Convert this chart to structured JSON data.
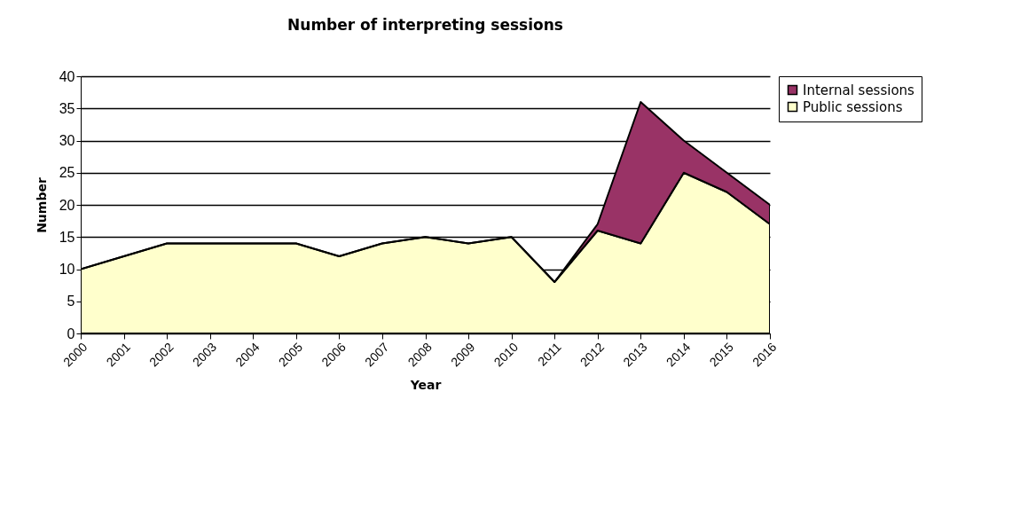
{
  "chart_data": {
    "type": "area",
    "title": "Number of interpreting sessions",
    "xlabel": "Year",
    "ylabel": "Number",
    "categories": [
      "2000",
      "2001",
      "2002",
      "2003",
      "2004",
      "2005",
      "2006",
      "2007",
      "2008",
      "2009",
      "2010",
      "2011",
      "2012",
      "2013",
      "2014",
      "2015",
      "2016"
    ],
    "stacked": true,
    "series": [
      {
        "name": "Public sessions",
        "color": "#ffffcc",
        "values": [
          10,
          12,
          14,
          14,
          14,
          14,
          12,
          14,
          15,
          14,
          15,
          8,
          16,
          14,
          25,
          22,
          17
        ]
      },
      {
        "name": "Internal sessions",
        "color": "#993366",
        "values": [
          0,
          0,
          0,
          0,
          0,
          0,
          0,
          0,
          0,
          0,
          0,
          0,
          1,
          22,
          5,
          3,
          3
        ]
      }
    ],
    "ylim": [
      0,
      40
    ],
    "yticks": [
      0,
      5,
      10,
      15,
      20,
      25,
      30,
      35,
      40
    ],
    "grid": "y",
    "legend": "right"
  }
}
